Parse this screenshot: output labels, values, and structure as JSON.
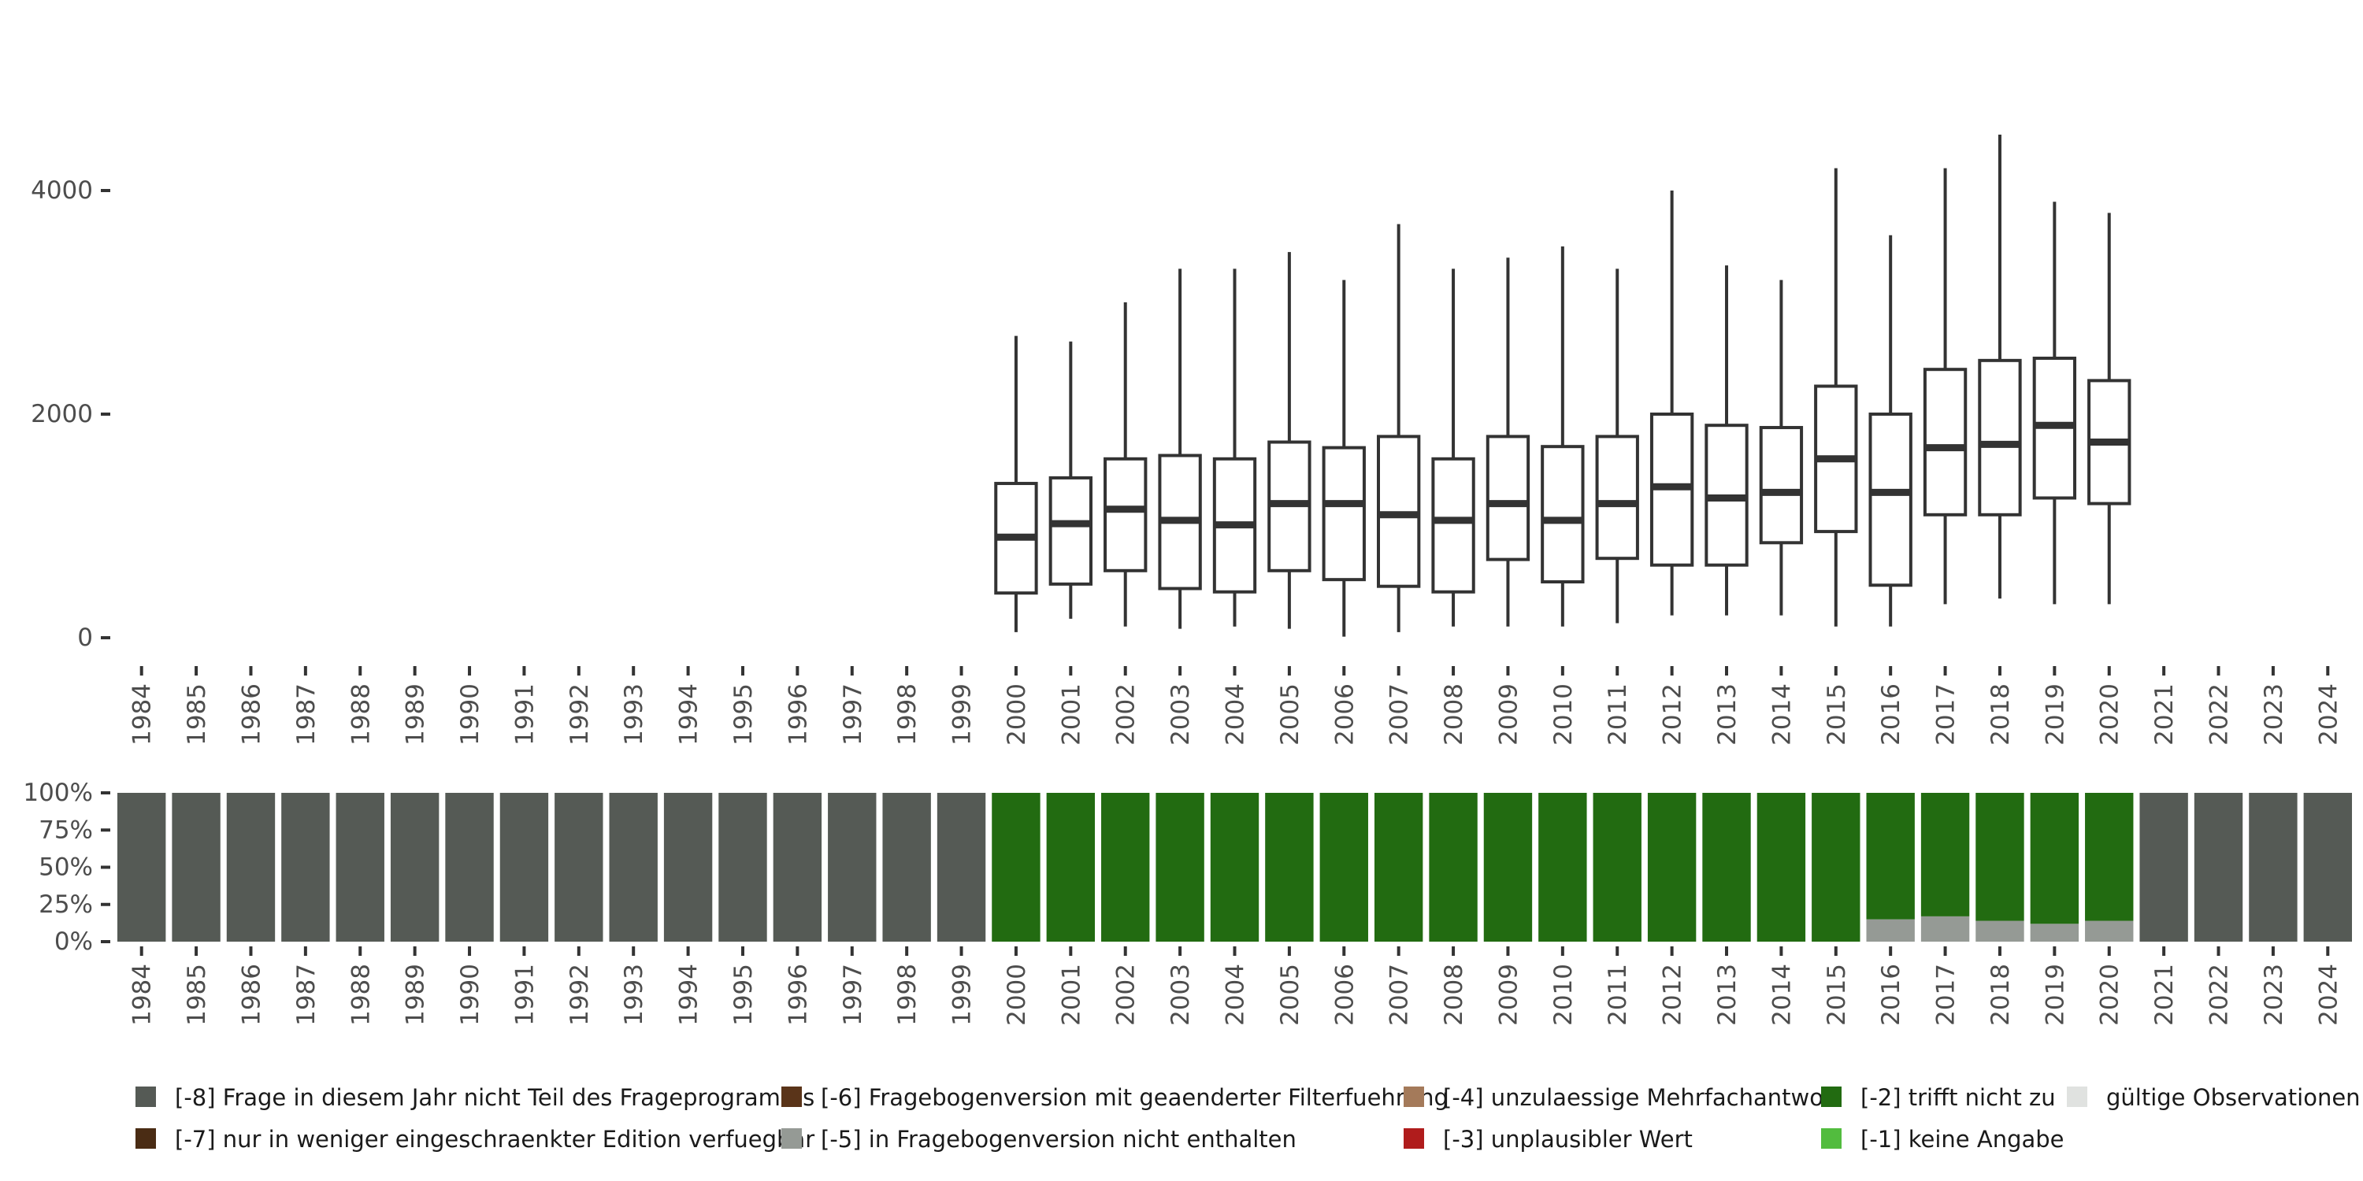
{
  "chart_data": [
    {
      "type": "boxplot",
      "categories": [
        "1984",
        "1985",
        "1986",
        "1987",
        "1988",
        "1989",
        "1990",
        "1991",
        "1992",
        "1993",
        "1994",
        "1995",
        "1996",
        "1997",
        "1998",
        "1999",
        "2000",
        "2001",
        "2002",
        "2003",
        "2004",
        "2005",
        "2006",
        "2007",
        "2008",
        "2009",
        "2010",
        "2011",
        "2012",
        "2013",
        "2014",
        "2015",
        "2016",
        "2017",
        "2018",
        "2019",
        "2020",
        "2021",
        "2022",
        "2023",
        "2024"
      ],
      "ylim": [
        0,
        5000
      ],
      "yticks": [
        0,
        2000,
        4000
      ],
      "ytick_labels": [
        "0",
        "2000",
        "4000"
      ],
      "grid": false,
      "boxes": [
        {
          "year": "2000",
          "min": 50,
          "q1": 400,
          "median": 900,
          "q3": 1380,
          "max": 2700
        },
        {
          "year": "2001",
          "min": 170,
          "q1": 480,
          "median": 1020,
          "q3": 1430,
          "max": 2650
        },
        {
          "year": "2002",
          "min": 100,
          "q1": 600,
          "median": 1150,
          "q3": 1600,
          "max": 3000
        },
        {
          "year": "2003",
          "min": 80,
          "q1": 440,
          "median": 1050,
          "q3": 1630,
          "max": 3300
        },
        {
          "year": "2004",
          "min": 100,
          "q1": 410,
          "median": 1010,
          "q3": 1600,
          "max": 3300
        },
        {
          "year": "2005",
          "min": 80,
          "q1": 600,
          "median": 1200,
          "q3": 1750,
          "max": 3450
        },
        {
          "year": "2006",
          "min": 10,
          "q1": 520,
          "median": 1200,
          "q3": 1700,
          "max": 3200
        },
        {
          "year": "2007",
          "min": 50,
          "q1": 460,
          "median": 1100,
          "q3": 1800,
          "max": 3700
        },
        {
          "year": "2008",
          "min": 100,
          "q1": 410,
          "median": 1050,
          "q3": 1600,
          "max": 3300
        },
        {
          "year": "2009",
          "min": 100,
          "q1": 700,
          "median": 1200,
          "q3": 1800,
          "max": 3400
        },
        {
          "year": "2010",
          "min": 100,
          "q1": 500,
          "median": 1050,
          "q3": 1710,
          "max": 3500
        },
        {
          "year": "2011",
          "min": 130,
          "q1": 710,
          "median": 1200,
          "q3": 1800,
          "max": 3300
        },
        {
          "year": "2012",
          "min": 200,
          "q1": 650,
          "median": 1350,
          "q3": 2000,
          "max": 4000
        },
        {
          "year": "2013",
          "min": 200,
          "q1": 650,
          "median": 1250,
          "q3": 1900,
          "max": 3330
        },
        {
          "year": "2014",
          "min": 200,
          "q1": 850,
          "median": 1300,
          "q3": 1880,
          "max": 3200
        },
        {
          "year": "2015",
          "min": 100,
          "q1": 950,
          "median": 1600,
          "q3": 2250,
          "max": 4200
        },
        {
          "year": "2016",
          "min": 100,
          "q1": 470,
          "median": 1300,
          "q3": 2000,
          "max": 3600
        },
        {
          "year": "2017",
          "min": 300,
          "q1": 1100,
          "median": 1700,
          "q3": 2400,
          "max": 4200
        },
        {
          "year": "2018",
          "min": 350,
          "q1": 1100,
          "median": 1730,
          "q3": 2480,
          "max": 4500
        },
        {
          "year": "2019",
          "min": 300,
          "q1": 1250,
          "median": 1900,
          "q3": 2500,
          "max": 3900
        },
        {
          "year": "2020",
          "min": 300,
          "q1": 1200,
          "median": 1750,
          "q3": 2300,
          "max": 3800
        }
      ]
    },
    {
      "type": "stacked_bar",
      "categories": [
        "1984",
        "1985",
        "1986",
        "1987",
        "1988",
        "1989",
        "1990",
        "1991",
        "1992",
        "1993",
        "1994",
        "1995",
        "1996",
        "1997",
        "1998",
        "1999",
        "2000",
        "2001",
        "2002",
        "2003",
        "2004",
        "2005",
        "2006",
        "2007",
        "2008",
        "2009",
        "2010",
        "2011",
        "2012",
        "2013",
        "2014",
        "2015",
        "2016",
        "2017",
        "2018",
        "2019",
        "2020",
        "2021",
        "2022",
        "2023",
        "2024"
      ],
      "ylim": [
        0,
        1
      ],
      "yticks": [
        0,
        0.25,
        0.5,
        0.75,
        1
      ],
      "ytick_labels": [
        "0%",
        "25%",
        "50%",
        "75%",
        "100%"
      ],
      "series": [
        {
          "name": "[-8] Frage in diesem Jahr nicht Teil des Frageprogramms",
          "color": "#555a55",
          "values": [
            1,
            1,
            1,
            1,
            1,
            1,
            1,
            1,
            1,
            1,
            1,
            1,
            1,
            1,
            1,
            1,
            0,
            0,
            0,
            0,
            0,
            0,
            0,
            0,
            0,
            0,
            0,
            0,
            0,
            0,
            0,
            0,
            0,
            0,
            0,
            0,
            0,
            1,
            1,
            1,
            1
          ]
        },
        {
          "name": "[-7] nur in weniger eingeschraenkter Edition verfuegbar",
          "color": "#4a2c14",
          "values": [
            0,
            0,
            0,
            0,
            0,
            0,
            0,
            0,
            0,
            0,
            0,
            0,
            0,
            0,
            0,
            0,
            0,
            0,
            0,
            0,
            0,
            0,
            0,
            0,
            0,
            0,
            0,
            0,
            0,
            0,
            0,
            0,
            0,
            0,
            0,
            0,
            0,
            0,
            0,
            0,
            0
          ]
        },
        {
          "name": "[-6] Fragebogenversion mit geaenderter Filterfuehrung",
          "color": "#5a3419",
          "values": [
            0,
            0,
            0,
            0,
            0,
            0,
            0,
            0,
            0,
            0,
            0,
            0,
            0,
            0,
            0,
            0,
            0,
            0,
            0,
            0,
            0,
            0,
            0,
            0,
            0,
            0,
            0,
            0,
            0,
            0,
            0,
            0,
            0,
            0,
            0,
            0,
            0,
            0,
            0,
            0,
            0
          ]
        },
        {
          "name": "[-5] in Fragebogenversion nicht enthalten",
          "color": "#959a95",
          "values": [
            0,
            0,
            0,
            0,
            0,
            0,
            0,
            0,
            0,
            0,
            0,
            0,
            0,
            0,
            0,
            0,
            0,
            0,
            0,
            0,
            0,
            0,
            0,
            0,
            0,
            0,
            0,
            0,
            0,
            0,
            0,
            0,
            0.15,
            0.17,
            0.14,
            0.12,
            0.14,
            0,
            0,
            0,
            0
          ]
        },
        {
          "name": "[-4] unzulaessige Mehrfachantwort",
          "color": "#a47a5a",
          "values": [
            0,
            0,
            0,
            0,
            0,
            0,
            0,
            0,
            0,
            0,
            0,
            0,
            0,
            0,
            0,
            0,
            0,
            0,
            0,
            0,
            0,
            0,
            0,
            0,
            0,
            0,
            0,
            0,
            0,
            0,
            0,
            0,
            0,
            0,
            0,
            0,
            0,
            0,
            0,
            0,
            0
          ]
        },
        {
          "name": "[-3] unplausibler Wert",
          "color": "#b01c1c",
          "values": [
            0,
            0,
            0,
            0,
            0,
            0,
            0,
            0,
            0,
            0,
            0,
            0,
            0,
            0,
            0,
            0,
            0,
            0,
            0,
            0,
            0,
            0,
            0,
            0,
            0,
            0,
            0,
            0,
            0,
            0,
            0,
            0,
            0,
            0,
            0,
            0,
            0,
            0,
            0,
            0,
            0
          ]
        },
        {
          "name": "[-2] trifft nicht zu",
          "color": "#226b11",
          "values": [
            0,
            0,
            0,
            0,
            0,
            0,
            0,
            0,
            0,
            0,
            0,
            0,
            0,
            0,
            0,
            0,
            1,
            1,
            1,
            1,
            1,
            1,
            1,
            1,
            1,
            1,
            1,
            1,
            1,
            1,
            1,
            1,
            0.85,
            0.83,
            0.86,
            0.88,
            0.86,
            0,
            0,
            0,
            0
          ]
        },
        {
          "name": "[-1] keine Angabe",
          "color": "#52bc3e",
          "values": [
            0,
            0,
            0,
            0,
            0,
            0,
            0,
            0,
            0,
            0,
            0,
            0,
            0,
            0,
            0,
            0,
            0,
            0,
            0,
            0,
            0,
            0,
            0,
            0,
            0,
            0,
            0,
            0,
            0,
            0,
            0,
            0,
            0,
            0,
            0,
            0,
            0,
            0,
            0,
            0,
            0
          ]
        },
        {
          "name": "gültige Observationen",
          "color": "#e0e2e0",
          "values": [
            0,
            0,
            0,
            0,
            0,
            0,
            0,
            0,
            0,
            0,
            0,
            0,
            0,
            0,
            0,
            0,
            0,
            0,
            0,
            0,
            0,
            0,
            0,
            0,
            0,
            0,
            0,
            0,
            0,
            0,
            0,
            0,
            0,
            0,
            0,
            0,
            0,
            0,
            0,
            0,
            0
          ]
        }
      ],
      "legend_placement": "bottom"
    }
  ],
  "legend": {
    "rows": [
      [
        0,
        2,
        4,
        6,
        8
      ],
      [
        1,
        3,
        5,
        7
      ]
    ]
  }
}
